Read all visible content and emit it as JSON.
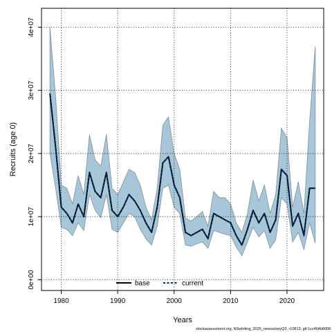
{
  "chart_data": {
    "type": "line",
    "title": "",
    "xlabel": "Years",
    "ylabel": "Recruits (age 0)",
    "xlim": [
      1976.5,
      2026.5
    ],
    "ylim": [
      -1700000,
      43000000
    ],
    "x_ticks": [
      1980,
      1990,
      2000,
      2010,
      2020
    ],
    "y_ticks": [
      0,
      10000000,
      20000000,
      30000000,
      40000000
    ],
    "y_tick_labels": [
      "0e+00",
      "1e+07",
      "2e+07",
      "3e+07",
      "4e+07"
    ],
    "grid": true,
    "legend_position": "bottom",
    "band_color": "#a7c6d8",
    "band_edge_color": "#7f8f99",
    "x": [
      1978,
      1979,
      1980,
      1981,
      1982,
      1983,
      1984,
      1985,
      1986,
      1987,
      1988,
      1989,
      1990,
      1991,
      1992,
      1993,
      1994,
      1995,
      1996,
      1997,
      1998,
      1999,
      2000,
      2001,
      2002,
      2003,
      2004,
      2005,
      2006,
      2007,
      2008,
      2009,
      2010,
      2011,
      2012,
      2013,
      2014,
      2015,
      2016,
      2017,
      2018,
      2019,
      2020,
      2021,
      2022,
      2023,
      2024,
      2025
    ],
    "series": [
      {
        "name": "base",
        "color": "#000000",
        "style": "solid",
        "values": [
          29500000,
          21000000,
          11500000,
          10500000,
          9000000,
          12000000,
          10000000,
          17000000,
          14000000,
          13000000,
          17000000,
          11000000,
          10000000,
          11500000,
          13500000,
          12500000,
          11000000,
          9000000,
          7500000,
          11500000,
          18500000,
          19500000,
          15000000,
          13000000,
          7500000,
          7000000,
          7500000,
          8000000,
          6500000,
          10500000,
          10000000,
          9500000,
          9000000,
          7000000,
          5500000,
          8000000,
          11000000,
          9000000,
          10500000,
          7500000,
          9500000,
          17500000,
          16500000,
          8500000,
          10500000,
          7000000,
          14500000,
          14500000
        ]
      },
      {
        "name": "current",
        "color": "#003366",
        "style": "dashed",
        "values": [
          29500000,
          21000000,
          11500000,
          10500000,
          9000000,
          12000000,
          10000000,
          17000000,
          14000000,
          13000000,
          17000000,
          11000000,
          10000000,
          11500000,
          13500000,
          12500000,
          11000000,
          9000000,
          7500000,
          11500000,
          18500000,
          19500000,
          15000000,
          13000000,
          7500000,
          7000000,
          7500000,
          8000000,
          6500000,
          10500000,
          10000000,
          9500000,
          9000000,
          7000000,
          5500000,
          8000000,
          11000000,
          9000000,
          10500000,
          7500000,
          9500000,
          17500000,
          16500000,
          8500000,
          10500000,
          7000000,
          14500000,
          14500000
        ]
      }
    ],
    "band": {
      "lower": [
        20000000,
        14500000,
        8300000,
        8000000,
        7000000,
        9000000,
        7800000,
        13500000,
        11000000,
        9800000,
        13500000,
        8000000,
        7500000,
        9000000,
        10500000,
        10000000,
        8000000,
        6500000,
        5500000,
        8500000,
        14500000,
        15000000,
        11500000,
        10500000,
        5500000,
        5300000,
        5700000,
        6000000,
        5000000,
        7800000,
        7500000,
        7200000,
        7000000,
        5200000,
        3800000,
        6000000,
        8300000,
        6800000,
        7800000,
        5000000,
        6300000,
        13000000,
        12000000,
        6000000,
        7500000,
        4800000,
        9000000,
        5800000
      ],
      "upper": [
        40000000,
        29000000,
        15000000,
        14500000,
        12000000,
        16500000,
        13500000,
        23000000,
        19000000,
        18000000,
        23000000,
        14500000,
        13500000,
        15500000,
        17500000,
        17000000,
        15000000,
        11500000,
        9500000,
        14500000,
        24500000,
        25800000,
        20000000,
        17500000,
        9800000,
        9300000,
        10000000,
        10800000,
        8500000,
        14000000,
        13000000,
        13000000,
        12000000,
        9000000,
        7500000,
        10500000,
        15800000,
        12500000,
        15000000,
        10500000,
        13500000,
        24000000,
        22500000,
        11500000,
        15500000,
        10500000,
        25000000,
        37000000
      ]
    },
    "caption": "stockassessment.org, NSwhiting_2025_newsurveyQ3, r10813, git:1cc464b8008"
  }
}
